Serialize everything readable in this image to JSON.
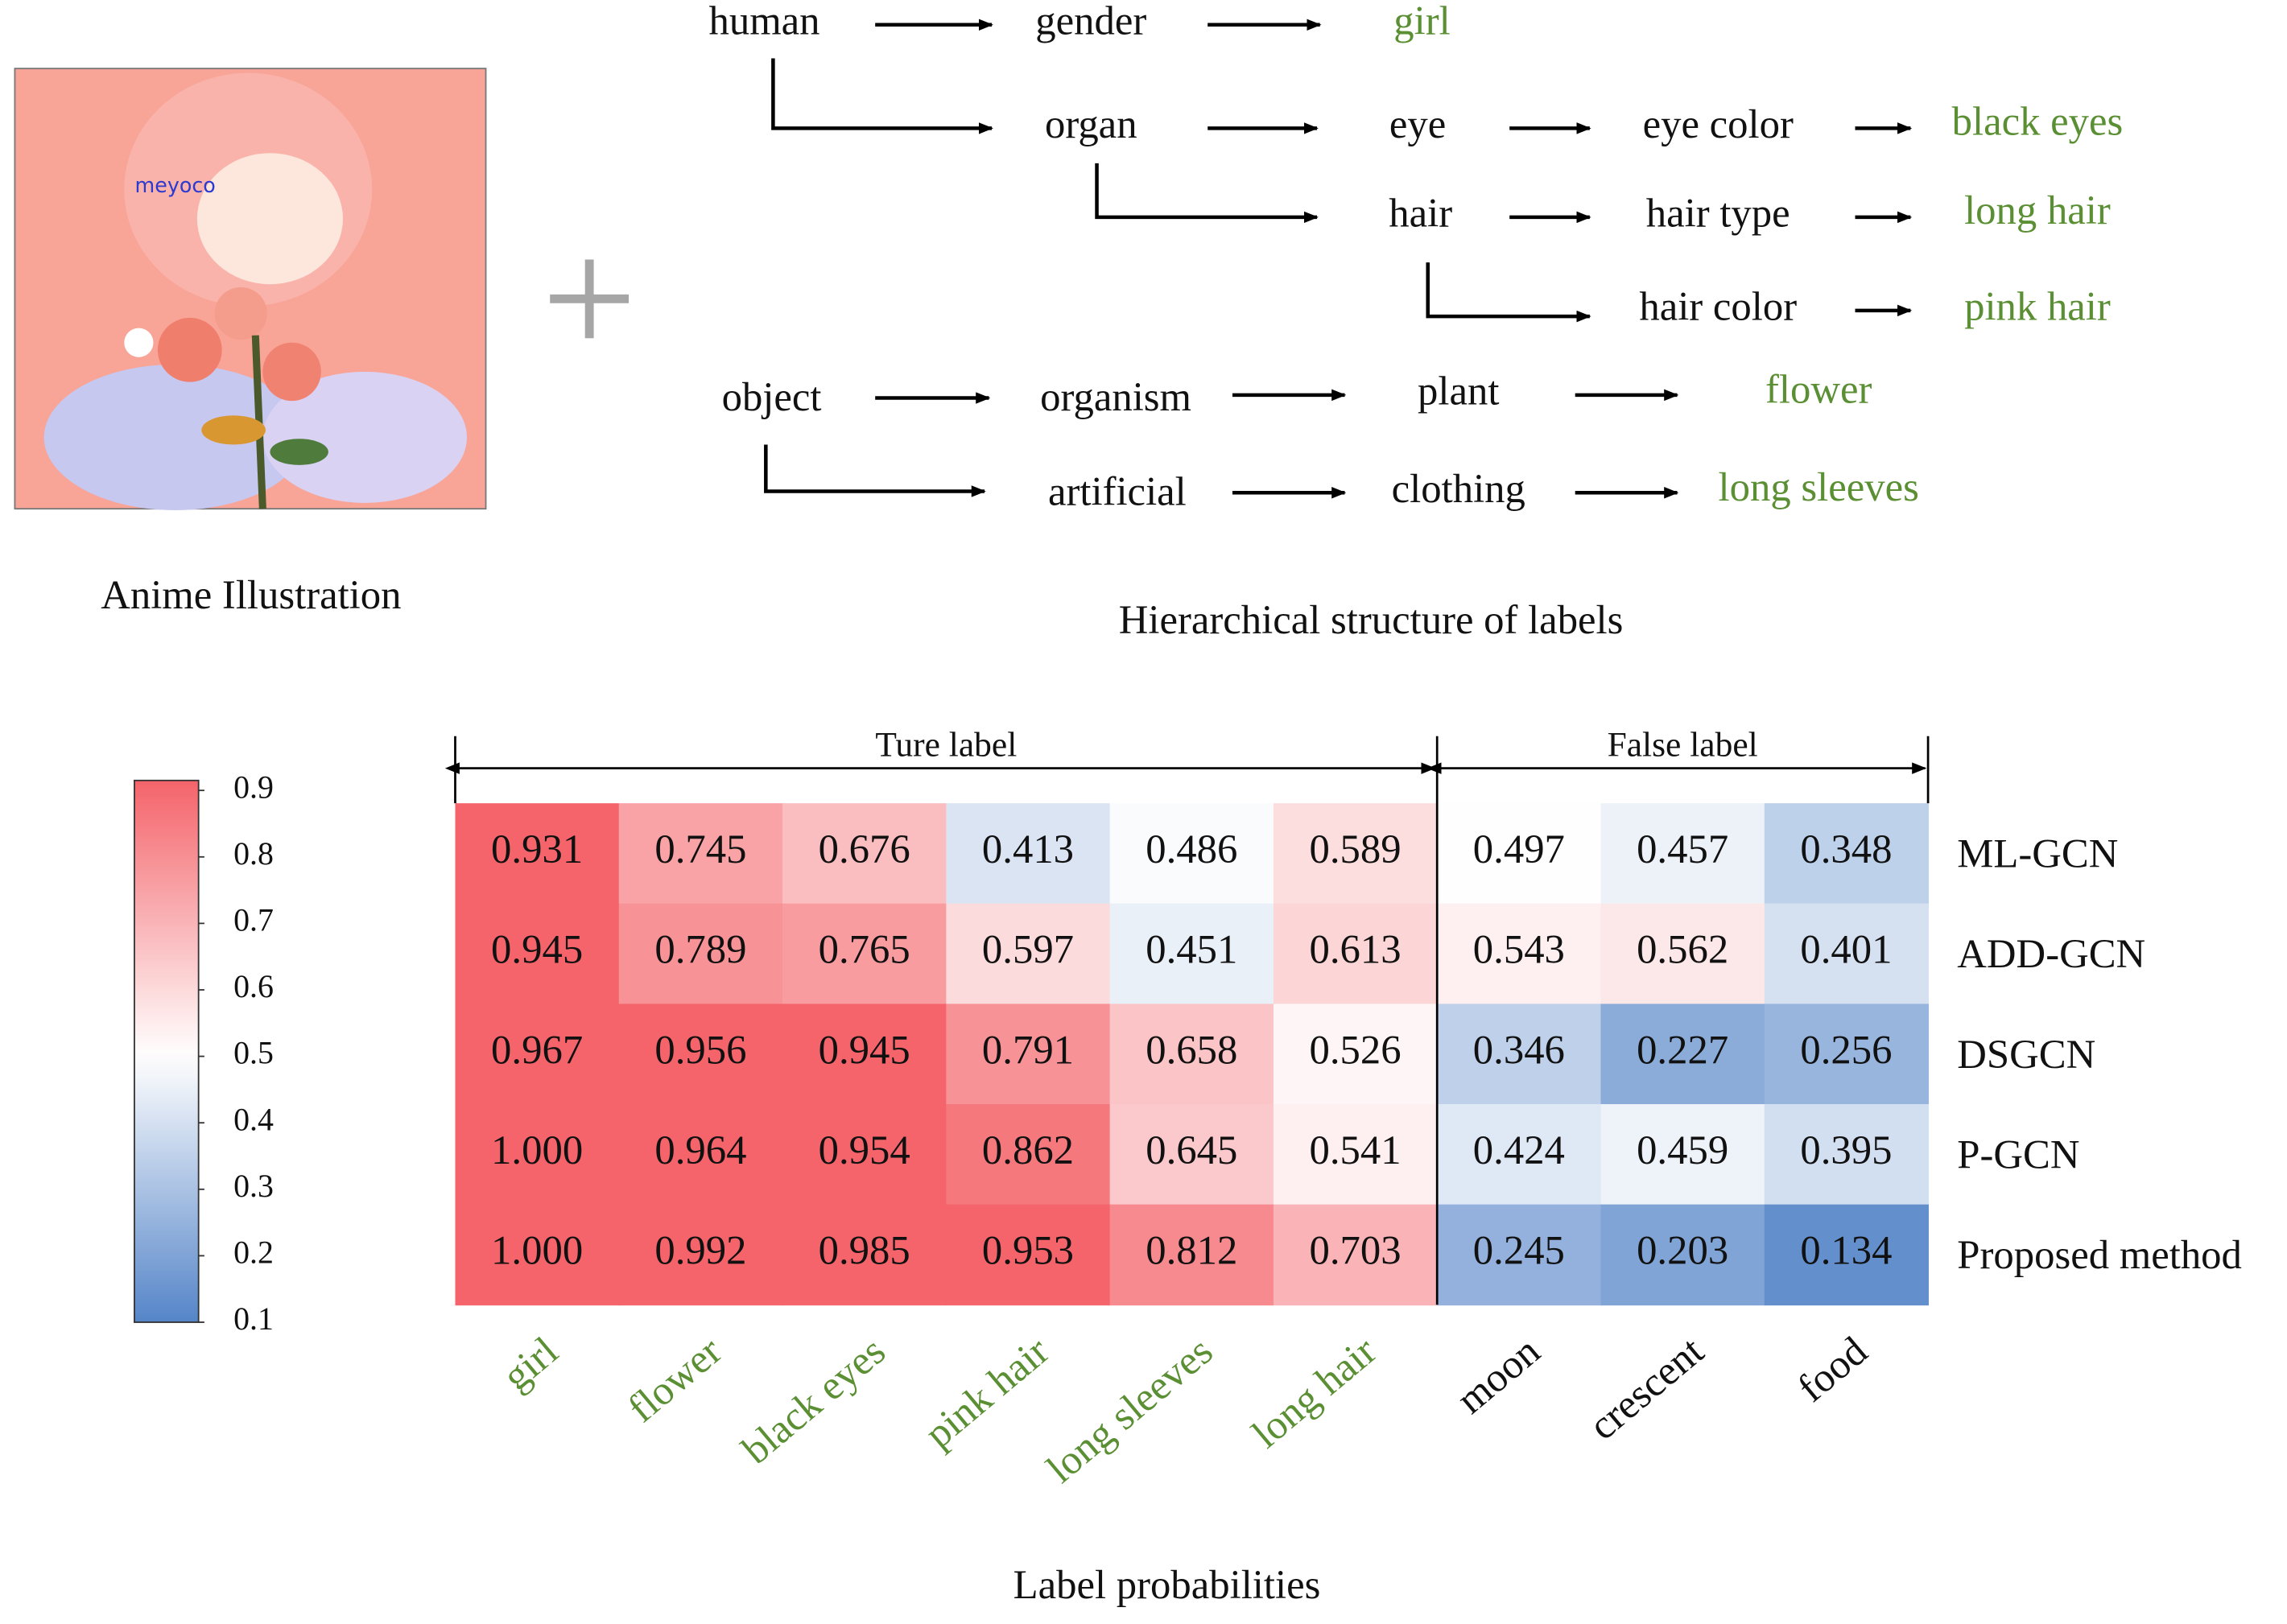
{
  "illustration": {
    "caption": "Anime Illustration"
  },
  "hierarchy": {
    "caption": "Hierarchical structure of labels",
    "leaf_color": "#5b8f33",
    "nodes": [
      {
        "label": "human"
      },
      {
        "label": "gender"
      },
      {
        "label": "girl",
        "leaf": true
      },
      {
        "label": "organ"
      },
      {
        "label": "eye"
      },
      {
        "label": "eye color"
      },
      {
        "label": "black eyes",
        "leaf": true
      },
      {
        "label": "hair"
      },
      {
        "label": "hair type"
      },
      {
        "label": "long hair",
        "leaf": true
      },
      {
        "label": "hair color"
      },
      {
        "label": "pink hair",
        "leaf": true
      },
      {
        "label": "object"
      },
      {
        "label": "organism"
      },
      {
        "label": "plant"
      },
      {
        "label": "flower",
        "leaf": true
      },
      {
        "label": "artificial"
      },
      {
        "label": "clothing"
      },
      {
        "label": "long sleeves",
        "leaf": true
      }
    ]
  },
  "chart_data": {
    "type": "heatmap",
    "title": "Label probabilities",
    "categories": [
      "girl",
      "flower",
      "black  eyes",
      "pink hair",
      "long sleeves",
      "long hair",
      "moon",
      "crescent",
      "food"
    ],
    "category_colors": [
      "#5b8f33",
      "#5b8f33",
      "#5b8f33",
      "#5b8f33",
      "#5b8f33",
      "#5b8f33",
      "#111111",
      "#111111",
      "#111111"
    ],
    "groups": [
      {
        "label": "Ture label",
        "size": 6
      },
      {
        "label": "False label",
        "size": 3
      }
    ],
    "rows": [
      "ML-GCN",
      "ADD-GCN",
      "DSGCN",
      "P-GCN",
      "Proposed method"
    ],
    "values": [
      [
        0.931,
        0.745,
        0.676,
        0.413,
        0.486,
        0.589,
        0.497,
        0.457,
        0.348
      ],
      [
        0.945,
        0.789,
        0.765,
        0.597,
        0.451,
        0.613,
        0.543,
        0.562,
        0.401
      ],
      [
        0.967,
        0.956,
        0.945,
        0.791,
        0.658,
        0.526,
        0.346,
        0.227,
        0.256
      ],
      [
        1.0,
        0.964,
        0.954,
        0.862,
        0.645,
        0.541,
        0.424,
        0.459,
        0.395
      ],
      [
        1.0,
        0.992,
        0.985,
        0.953,
        0.812,
        0.703,
        0.245,
        0.203,
        0.134
      ]
    ],
    "value_labels": [
      [
        "0.931",
        "0.745",
        "0.676",
        "0.413",
        "0.486",
        "0.589",
        "0.497",
        "0.457",
        "0.348"
      ],
      [
        "0.945",
        "0.789",
        "0.765",
        "0.597",
        "0.451",
        "0.613",
        "0.543",
        "0.562",
        "0.401"
      ],
      [
        "0.967",
        "0.956",
        "0.945",
        "0.791",
        "0.658",
        "0.526",
        "0.346",
        "0.227",
        "0.256"
      ],
      [
        "1.000",
        "0.964",
        "0.954",
        "0.862",
        "0.645",
        "0.541",
        "0.424",
        "0.459",
        "0.395"
      ],
      [
        "1.000",
        "0.992",
        "0.985",
        "0.953",
        "0.812",
        "0.703",
        "0.245",
        "0.203",
        "0.134"
      ]
    ],
    "zlim": [
      0.1,
      0.915
    ],
    "zcenter": 0.5,
    "colors": [
      "#5585c8",
      "#ffffff",
      "#f4646a"
    ],
    "zticks": [
      0.1,
      0.2,
      0.3,
      0.4,
      0.5,
      0.6,
      0.7,
      0.8,
      0.9
    ]
  }
}
